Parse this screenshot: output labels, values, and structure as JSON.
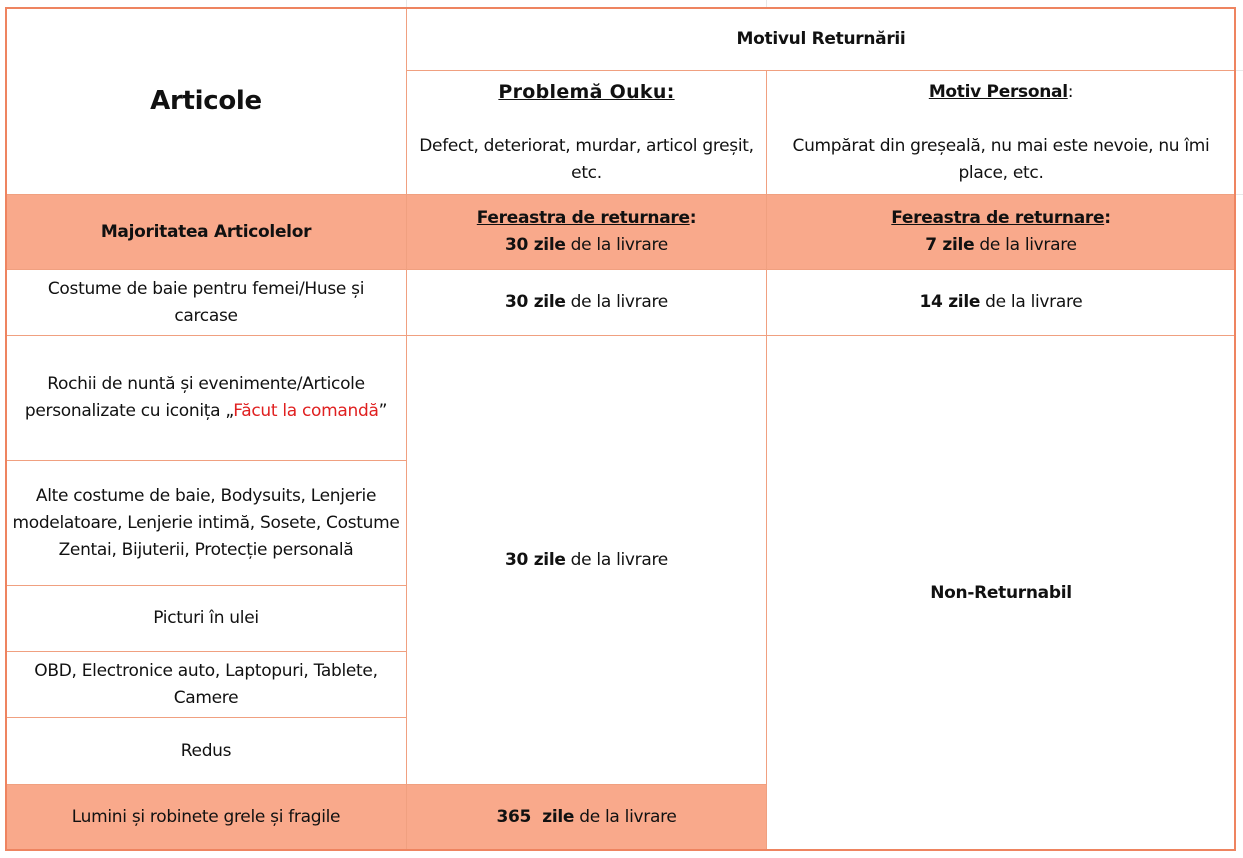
{
  "header": {
    "articles": "Articole",
    "reason": "Motivul Returnării",
    "ouku_title": "Problemă Ouku:",
    "ouku_desc": "Defect, deteriorat, murdar, articol greșit, etc.",
    "personal_title": "Motiv Personal",
    "personal_colon": ":",
    "personal_desc": "Cumpărat din greșeală, nu mai este nevoie, nu îmi place, etc."
  },
  "common": {
    "window_label": "Fereastra de returnare",
    "colon": ":",
    "from_delivery": " de la livrare"
  },
  "rows": [
    {
      "item": "Majoritatea Articolelor",
      "ouku_days": "30 zile",
      "personal_days": "7 zile"
    },
    {
      "item": "Costume de baie pentru femei/Huse și carcase",
      "ouku_days": "30 zile",
      "personal_days": "14 zile"
    },
    {
      "item_prefix": "Rochii de nuntă și evenimente/Articole personalizate cu iconița „",
      "item_highlight": "Făcut la comandă",
      "item_suffix": "”"
    },
    {
      "item": "Alte costume de baie, Bodysuits, Lenjerie modelatoare, Lenjerie intimă, Sosete, Costume Zentai, Bijuterii, Protecție personală"
    },
    {
      "item": "Picturi în ulei"
    },
    {
      "item": "OBD, Electronice auto, Laptopuri, Tablete, Camere"
    },
    {
      "item": "Redus"
    },
    {
      "item": "Lumini și robinete grele și fragile",
      "ouku_days": "365  zile"
    }
  ],
  "merged": {
    "ouku_days": "30 zile",
    "personal": "Non-Returnabil"
  },
  "colors": {
    "highlight_fill": "#f9a98b",
    "border": "#ee8460",
    "accent_text": "#e02020"
  }
}
